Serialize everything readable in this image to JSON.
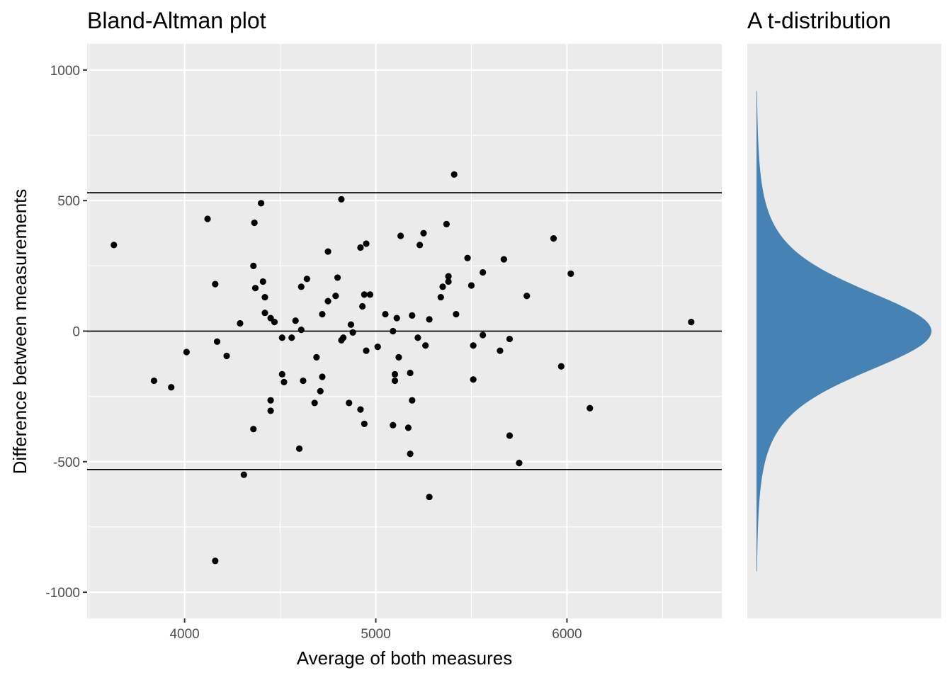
{
  "chart_data": [
    {
      "type": "scatter",
      "title": "Bland-Altman plot",
      "xlabel": "Average of both measures",
      "ylabel": "Difference between measurements",
      "xlim": [
        3490,
        6810
      ],
      "ylim": [
        -1100,
        1100
      ],
      "x_ticks": [
        4000,
        5000,
        6000
      ],
      "y_ticks": [
        -1000,
        -500,
        0,
        500,
        1000
      ],
      "grid": true,
      "reference_lines": [
        530,
        0,
        -530
      ],
      "point_color": "#000000",
      "panel_color": "#ebebeb",
      "points": [
        [
          3630,
          330
        ],
        [
          3840,
          -190
        ],
        [
          3930,
          -215
        ],
        [
          4010,
          -80
        ],
        [
          4120,
          430
        ],
        [
          4160,
          180
        ],
        [
          4160,
          -880
        ],
        [
          4170,
          -40
        ],
        [
          4220,
          -95
        ],
        [
          4290,
          30
        ],
        [
          4310,
          -550
        ],
        [
          4360,
          250
        ],
        [
          4360,
          -375
        ],
        [
          4365,
          415
        ],
        [
          4370,
          165
        ],
        [
          4400,
          490
        ],
        [
          4410,
          190
        ],
        [
          4420,
          130
        ],
        [
          4420,
          70
        ],
        [
          4450,
          50
        ],
        [
          4450,
          -265
        ],
        [
          4450,
          -305
        ],
        [
          4470,
          35
        ],
        [
          4510,
          -25
        ],
        [
          4510,
          -165
        ],
        [
          4520,
          -195
        ],
        [
          4560,
          -25
        ],
        [
          4580,
          40
        ],
        [
          4600,
          -450
        ],
        [
          4610,
          170
        ],
        [
          4610,
          5
        ],
        [
          4620,
          -190
        ],
        [
          4640,
          200
        ],
        [
          4680,
          -275
        ],
        [
          4690,
          -100
        ],
        [
          4710,
          -230
        ],
        [
          4720,
          65
        ],
        [
          4720,
          -175
        ],
        [
          4750,
          305
        ],
        [
          4750,
          115
        ],
        [
          4790,
          135
        ],
        [
          4800,
          205
        ],
        [
          4820,
          505
        ],
        [
          4820,
          -35
        ],
        [
          4830,
          -25
        ],
        [
          4860,
          -275
        ],
        [
          4870,
          25
        ],
        [
          4880,
          -5
        ],
        [
          4920,
          320
        ],
        [
          4920,
          -300
        ],
        [
          4930,
          95
        ],
        [
          4940,
          140
        ],
        [
          4940,
          -355
        ],
        [
          4950,
          335
        ],
        [
          4950,
          -75
        ],
        [
          4970,
          140
        ],
        [
          5010,
          -60
        ],
        [
          5050,
          65
        ],
        [
          5090,
          -360
        ],
        [
          5090,
          0
        ],
        [
          5100,
          -165
        ],
        [
          5100,
          -190
        ],
        [
          5110,
          50
        ],
        [
          5120,
          -100
        ],
        [
          5130,
          365
        ],
        [
          5170,
          -370
        ],
        [
          5180,
          -470
        ],
        [
          5180,
          -160
        ],
        [
          5190,
          -265
        ],
        [
          5190,
          60
        ],
        [
          5220,
          -25
        ],
        [
          5230,
          330
        ],
        [
          5250,
          375
        ],
        [
          5260,
          -55
        ],
        [
          5280,
          45
        ],
        [
          5280,
          -635
        ],
        [
          5340,
          130
        ],
        [
          5350,
          170
        ],
        [
          5370,
          410
        ],
        [
          5380,
          210
        ],
        [
          5380,
          190
        ],
        [
          5410,
          600
        ],
        [
          5420,
          65
        ],
        [
          5480,
          280
        ],
        [
          5500,
          175
        ],
        [
          5510,
          -55
        ],
        [
          5510,
          -185
        ],
        [
          5560,
          225
        ],
        [
          5560,
          -15
        ],
        [
          5650,
          -75
        ],
        [
          5670,
          275
        ],
        [
          5700,
          -400
        ],
        [
          5700,
          -30
        ],
        [
          5750,
          -505
        ],
        [
          5790,
          135
        ],
        [
          5930,
          355
        ],
        [
          5970,
          -135
        ],
        [
          6020,
          220
        ],
        [
          6120,
          -295
        ],
        [
          6650,
          35
        ]
      ]
    },
    {
      "type": "area",
      "title": "A t-distribution",
      "orientation": "vertical",
      "ylim": [
        -1100,
        1100
      ],
      "xlim": [
        0,
        1
      ],
      "x_ticks": [],
      "y_ticks": [],
      "fill_color": "#4682b4",
      "panel_color": "#ebebeb",
      "scale": 1.0,
      "support": [
        -920,
        920
      ],
      "degrees_of_freedom": 5,
      "peak_value": 1.0
    }
  ]
}
